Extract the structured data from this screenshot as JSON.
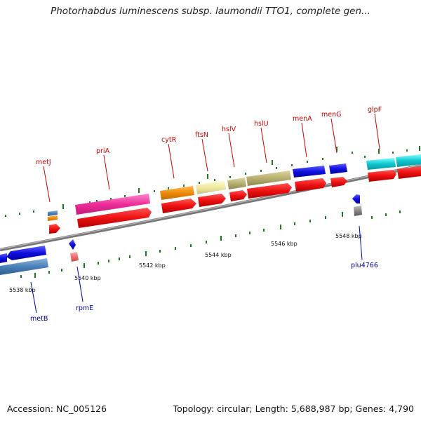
{
  "title": "Photorhabdus luminescens subsp. laumondii TTO1, complete gen...",
  "ticks": [
    "5538 kbp",
    "5540 kbp",
    "5542 kbp",
    "5544 kbp",
    "5546 kbp",
    "5548 kbp"
  ],
  "genes_top": [
    "metJ",
    "priA",
    "cytR",
    "ftsN",
    "hslV",
    "hslU",
    "menA",
    "menG",
    "glpF"
  ],
  "genes_bottom": [
    "metB",
    "rpmE",
    "plu4766"
  ],
  "footer": {
    "accession": "Accession: NC_005126",
    "summary": "Topology: circular; Length: 5,688,987 bp; Genes: 4,790"
  },
  "colors": {
    "cds": "#ee1111",
    "backbone": "#7a7a7a",
    "tick": "#1a7a1a",
    "label_top": "#cc0000",
    "label_bottom": "#000099",
    "pink": "#ee2e9a",
    "orange": "#ee8a0a",
    "yellow": "#eeeaa0",
    "olive": "#b8b070",
    "blue": "#1010e0",
    "cyan": "#10c8d0",
    "steel": "#4a80b8"
  }
}
